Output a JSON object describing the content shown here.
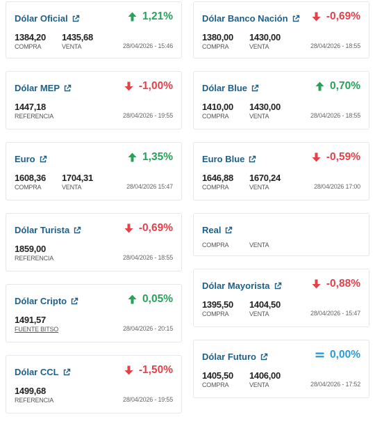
{
  "left": [
    {
      "title": "Dólar Oficial",
      "change": "1,21%",
      "direction": "up",
      "values": [
        {
          "value": "1384,20",
          "label": "COMPRA"
        },
        {
          "value": "1435,68",
          "label": "VENTA"
        }
      ],
      "timestamp": "28/04/2026 - 15:46"
    },
    {
      "title": "Dólar MEP",
      "change": "-1,00%",
      "direction": "down",
      "values": [
        {
          "value": "1447,18",
          "label": "REFERENCIA"
        }
      ],
      "timestamp": "28/04/2026 - 19:55"
    },
    {
      "title": "Euro",
      "change": "1,35%",
      "direction": "up",
      "values": [
        {
          "value": "1608,36",
          "label": "COMPRA"
        },
        {
          "value": "1704,31",
          "label": "VENTA"
        }
      ],
      "timestamp": "28/04/2026 15:47"
    },
    {
      "title": "Dólar Turista",
      "change": "-0,69%",
      "direction": "down",
      "values": [
        {
          "value": "1859,00",
          "label": "REFERENCIA"
        }
      ],
      "timestamp": "28/04/2026 - 18:55"
    },
    {
      "title": "Dólar Cripto",
      "change": "0,05%",
      "direction": "up",
      "values": [
        {
          "value": "1491,57",
          "label": "FUENTE BITSO",
          "link": true
        }
      ],
      "timestamp": "28/04/2026 - 20:15"
    },
    {
      "title": "Dólar CCL",
      "change": "-1,50%",
      "direction": "down",
      "values": [
        {
          "value": "1499,68",
          "label": "REFERENCIA"
        }
      ],
      "timestamp": "28/04/2026 - 19:55"
    }
  ],
  "right": [
    {
      "title": "Dólar Banco Nación",
      "change": "-0,69%",
      "direction": "down",
      "values": [
        {
          "value": "1380,00",
          "label": "COMPRA"
        },
        {
          "value": "1430,00",
          "label": "VENTA"
        }
      ],
      "timestamp": "28/04/2026 - 18:55"
    },
    {
      "title": "Dólar Blue",
      "change": "0,70%",
      "direction": "up",
      "values": [
        {
          "value": "1410,00",
          "label": "COMPRA"
        },
        {
          "value": "1430,00",
          "label": "VENTA"
        }
      ],
      "timestamp": "28/04/2026 - 18:55"
    },
    {
      "title": "Euro Blue",
      "change": "-0,59%",
      "direction": "down",
      "values": [
        {
          "value": "1646,88",
          "label": "COMPRA"
        },
        {
          "value": "1670,24",
          "label": "VENTA"
        }
      ],
      "timestamp": "28/04/2026 17:00"
    },
    {
      "title": "Real",
      "change": "",
      "direction": "none",
      "values": [
        {
          "value": "",
          "label": "COMPRA"
        },
        {
          "value": "",
          "label": "VENTA"
        }
      ],
      "timestamp": ""
    },
    {
      "title": "Dólar Mayorista",
      "change": "-0,88%",
      "direction": "down",
      "values": [
        {
          "value": "1395,50",
          "label": "COMPRA"
        },
        {
          "value": "1404,50",
          "label": "VENTA"
        }
      ],
      "timestamp": "28/04/2026 - 15:47"
    },
    {
      "title": "Dólar Futuro",
      "change": "0,00%",
      "direction": "flat",
      "values": [
        {
          "value": "1405,50",
          "label": "COMPRA"
        },
        {
          "value": "1406,00",
          "label": "VENTA"
        }
      ],
      "timestamp": "28/04/2026 - 17:52"
    }
  ],
  "colors": {
    "title": "#1f5f87",
    "up": "#27a25a",
    "down": "#e2424a",
    "flat": "#2e9ad6",
    "border": "#e3e6ea"
  },
  "icons": {
    "external": "external-link-icon",
    "up": "arrow-up-icon",
    "down": "arrow-down-icon",
    "flat": "equals-icon"
  }
}
